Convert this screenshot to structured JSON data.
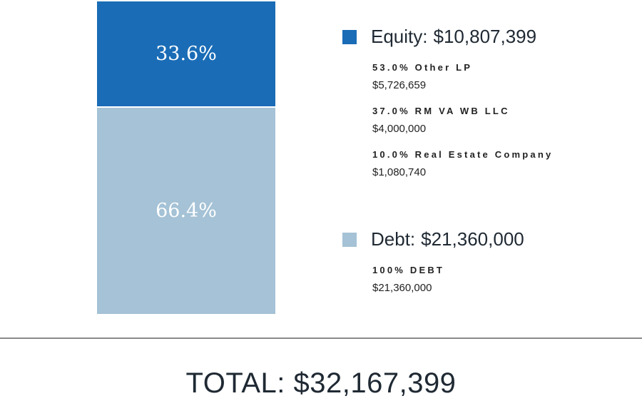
{
  "chart_data": {
    "type": "bar",
    "stacked": true,
    "categories": [
      ""
    ],
    "series": [
      {
        "name": "Equity",
        "values": [
          33.6
        ],
        "label": "33.6%",
        "color": "#1a6cb6"
      },
      {
        "name": "Debt",
        "values": [
          66.4
        ],
        "label": "66.4%",
        "color": "#a5c2d6"
      }
    ],
    "ylim": [
      0,
      100
    ],
    "grid": false,
    "legend_placement": "right",
    "legend": [
      {
        "label": "Equity:",
        "amount": "$10,807,399",
        "color": "#1a6cb6",
        "breakdown": [
          {
            "title": "53.0% Other LP",
            "value": "$5,726,659"
          },
          {
            "title": "37.0% RM VA WB LLC",
            "value": "$4,000,000"
          },
          {
            "title": "10.0% Real Estate Company",
            "value": "$1,080,740"
          }
        ]
      },
      {
        "label": "Debt:",
        "amount": "$21,360,000",
        "color": "#a5c2d6",
        "breakdown": [
          {
            "title": "100% DEBT",
            "value": "$21,360,000"
          }
        ]
      }
    ],
    "total": "TOTAL: $32,167,399"
  }
}
